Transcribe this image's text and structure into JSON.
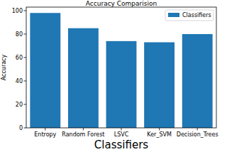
{
  "chart_data": {
    "type": "bar",
    "title": "Accuracy Comparision",
    "x_label": "Classifiers",
    "y_label": "Accuracy",
    "categories": [
      "Entropy",
      "Random Forest",
      "LSVC",
      "Ker_SVM",
      "Decision_Trees"
    ],
    "series": [
      {
        "name": "Classifiers",
        "color": "#1f77b4",
        "values": [
          98,
          85,
          74,
          73,
          80
        ]
      }
    ],
    "ylim": [
      0,
      103
    ],
    "yticks": [
      0,
      20,
      40,
      60,
      80,
      100
    ],
    "legend": "upper right",
    "grid": false
  }
}
